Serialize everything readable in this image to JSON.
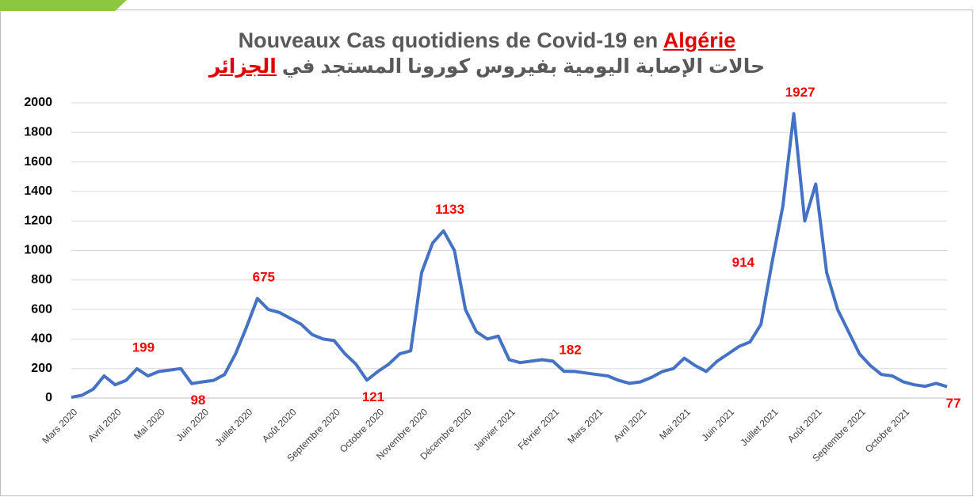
{
  "chart_data": {
    "type": "line",
    "title": "Nouveaux Cas quotidiens de Covid-19 en",
    "title_highlight": "Algérie",
    "subtitle": "حالات الإصابة اليومية بفيروس كورونا المستجد في",
    "subtitle_highlight": "الجزائر",
    "categories": [
      "Mars 2020",
      null,
      null,
      null,
      "Avril 2020",
      null,
      null,
      null,
      "Mai 2020",
      null,
      null,
      null,
      "Juin 2020",
      null,
      null,
      null,
      "Juillet 2020",
      null,
      null,
      null,
      "Août 2020",
      null,
      null,
      null,
      "Septembre 2020",
      null,
      null,
      null,
      "Octobre 2020",
      null,
      null,
      null,
      "Novembre 2020",
      null,
      null,
      null,
      "Décembre 2020",
      null,
      null,
      null,
      "Janvier 2021",
      null,
      null,
      null,
      "Février 2021",
      null,
      null,
      null,
      "Mars 2021",
      null,
      null,
      null,
      "Avril 2021",
      null,
      null,
      null,
      "Mai 2021",
      null,
      null,
      null,
      "Juin 2021",
      null,
      null,
      null,
      "Juillet 2021",
      null,
      null,
      null,
      "Août 2021",
      null,
      null,
      null,
      "Septembre 2021",
      null,
      null,
      null,
      "Octobre 2021",
      null,
      null,
      null,
      null
    ],
    "series": [
      {
        "name": "Nouveaux cas",
        "color": "#4472c4",
        "values": [
          5,
          20,
          60,
          150,
          90,
          120,
          199,
          150,
          180,
          190,
          200,
          98,
          110,
          120,
          160,
          300,
          480,
          675,
          600,
          580,
          540,
          500,
          430,
          400,
          390,
          300,
          230,
          121,
          180,
          230,
          300,
          320,
          850,
          1050,
          1133,
          1000,
          600,
          450,
          400,
          420,
          260,
          240,
          250,
          260,
          250,
          182,
          180,
          170,
          160,
          150,
          120,
          100,
          110,
          140,
          180,
          200,
          270,
          220,
          180,
          250,
          300,
          350,
          380,
          500,
          914,
          1300,
          1927,
          1200,
          1450,
          850,
          600,
          450,
          300,
          220,
          160,
          150,
          110,
          90,
          80,
          100,
          77
        ]
      }
    ],
    "annotations": [
      199,
      98,
      675,
      121,
      1133,
      182,
      914,
      1927,
      77
    ],
    "annotation_color": "#ff0000",
    "ylim": [
      0,
      2000
    ],
    "yticks": [
      0,
      200,
      400,
      600,
      800,
      1000,
      1200,
      1400,
      1600,
      1800,
      2000
    ],
    "grid": true
  }
}
